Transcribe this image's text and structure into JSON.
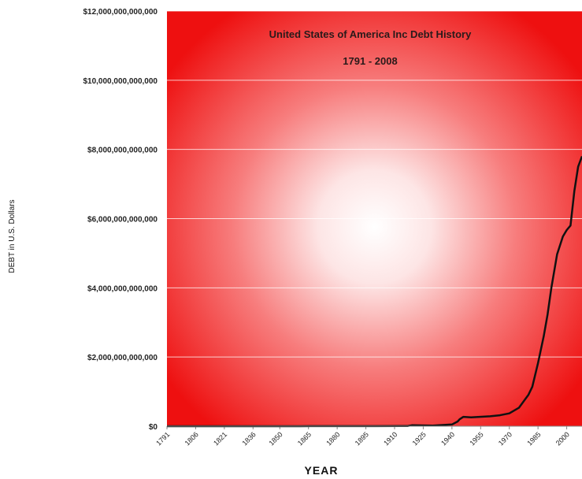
{
  "chart_data": {
    "type": "line",
    "title": "United States of America Inc Debt History",
    "subtitle": "1791 - 2008",
    "xlabel": "YEAR",
    "ylabel": "DEBT in U.S. Dollars",
    "xlim": [
      1791,
      2008
    ],
    "ylim": [
      0,
      12000000000000
    ],
    "yticks": [
      {
        "value": 0,
        "label": "$0"
      },
      {
        "value": 2000000000000,
        "label": "$2,000,000,000,000"
      },
      {
        "value": 4000000000000,
        "label": "$4,000,000,000,000"
      },
      {
        "value": 6000000000000,
        "label": "$6,000,000,000,000"
      },
      {
        "value": 8000000000000,
        "label": "$8,000,000,000,000"
      },
      {
        "value": 10000000000000,
        "label": "$10,000,000,000,000"
      },
      {
        "value": 12000000000000,
        "label": "$12,000,000,000,000"
      }
    ],
    "xticks": [
      "1791",
      "1806",
      "1821",
      "1836",
      "1850",
      "1865",
      "1880",
      "1895",
      "1910",
      "1925",
      "1940",
      "1955",
      "1970",
      "1985",
      "2000"
    ],
    "grid": true,
    "series": [
      {
        "color": "#111111",
        "x": [
          1791,
          1815,
          1835,
          1860,
          1866,
          1900,
          1917,
          1919,
          1930,
          1940,
          1943,
          1944,
          1946,
          1950,
          1960,
          1965,
          1970,
          1975,
          1980,
          1982,
          1985,
          1988,
          1990,
          1992,
          1995,
          1998,
          2000,
          2002,
          2004,
          2006,
          2008
        ],
        "y": [
          75000000,
          127000000,
          0,
          65000000,
          2770000000,
          2140000000,
          5700000000,
          27400000000,
          16000000000,
          51000000000,
          136000000000,
          201000000000,
          270000000000,
          257000000000,
          286000000000,
          317000000000,
          371000000000,
          533000000000,
          908000000000,
          1140000000000,
          1820000000000,
          2600000000000,
          3230000000000,
          4000000000000,
          4970000000000,
          5480000000000,
          5670000000000,
          5800000000000,
          6800000000000,
          7500000000000,
          7800000000000
        ]
      }
    ]
  }
}
